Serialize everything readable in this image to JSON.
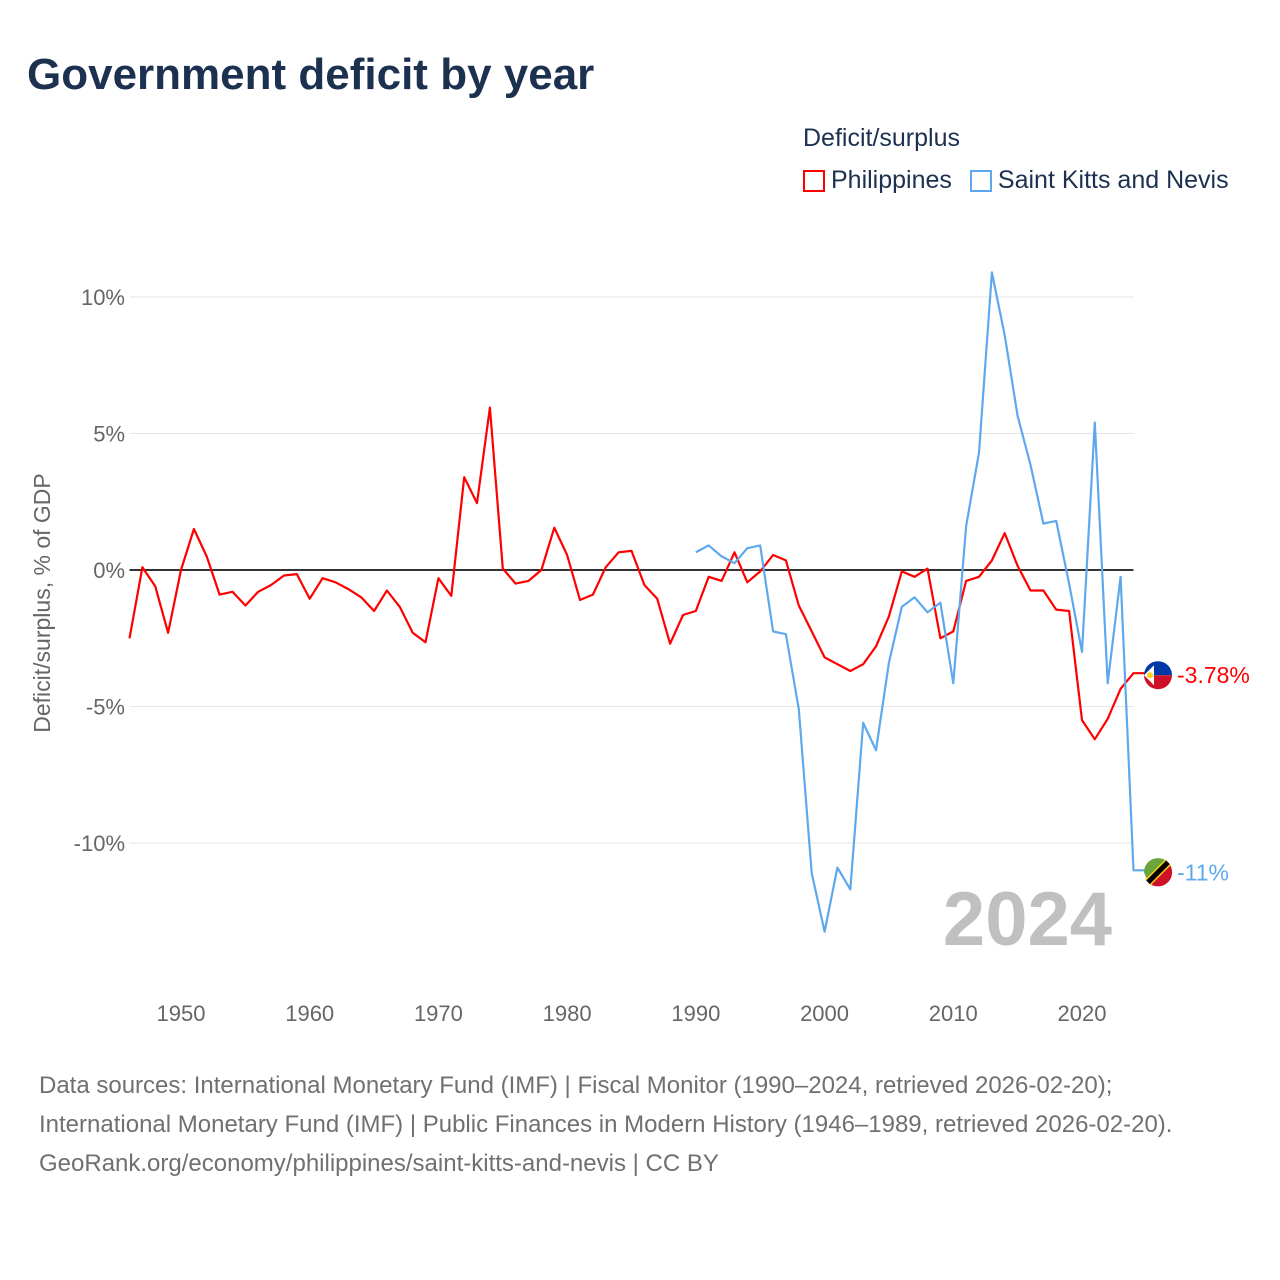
{
  "title": "Government deficit by year",
  "legend": {
    "title": "Deficit/surplus"
  },
  "chart_data": {
    "type": "line",
    "title": "Government deficit by year",
    "ylabel": "Deficit/surplus, % of GDP",
    "xlabel": "",
    "xlim": [
      1946,
      2024
    ],
    "ylim": [
      -15,
      11
    ],
    "x_ticks": [
      1950,
      1960,
      1970,
      1980,
      1990,
      2000,
      2010,
      2020
    ],
    "y_ticks": [
      {
        "v": 10,
        "label": "10%"
      },
      {
        "v": 5,
        "label": "5%"
      },
      {
        "v": 0,
        "label": "0%"
      },
      {
        "v": -5,
        "label": "-5%"
      },
      {
        "v": -10,
        "label": "-10%"
      }
    ],
    "current_year_label": "2024",
    "grid": true,
    "legend_placement": "top-right",
    "series": [
      {
        "name": "Philippines",
        "color": "#ff0000",
        "start": 1946,
        "end_label": "-3.78%",
        "flag": "philippines-flag-icon",
        "values": [
          -2.5,
          0.1,
          -0.6,
          -2.3,
          0,
          1.5,
          0.5,
          -0.9,
          -0.8,
          -1.3,
          -0.8,
          -0.55,
          -0.2,
          -0.15,
          -1.05,
          -0.3,
          -0.45,
          -0.7,
          -1.0,
          -1.5,
          -0.75,
          -1.35,
          -2.3,
          -2.65,
          -0.3,
          -0.95,
          3.4,
          2.45,
          5.95,
          0.05,
          -0.5,
          -0.4,
          0,
          1.55,
          0.55,
          -1.1,
          -0.9,
          0.1,
          0.65,
          0.7,
          -0.55,
          -1.05,
          -2.7,
          -1.65,
          -1.5,
          -0.25,
          -0.4,
          0.65,
          -0.45,
          -0.05,
          0.55,
          0.35,
          -1.3,
          -2.25,
          -3.2,
          -3.45,
          -3.7,
          -3.45,
          -2.8,
          -1.7,
          -0.05,
          -0.25,
          0.05,
          -2.5,
          -2.25,
          -0.4,
          -0.25,
          0.35,
          1.35,
          0.15,
          -0.75,
          -0.75,
          -1.45,
          -1.5,
          -5.5,
          -6.2,
          -5.45,
          -4.35,
          -3.78
        ]
      },
      {
        "name": "Saint Kitts and Nevis",
        "color": "#5ea8ee",
        "start": 1990,
        "end_label": "-11%",
        "flag": "saint-kitts-flag-icon",
        "values": [
          0.65,
          0.9,
          0.5,
          0.25,
          0.8,
          0.9,
          -2.25,
          -2.35,
          -5.1,
          -11.1,
          -13.25,
          -10.9,
          -11.7,
          -5.6,
          -6.6,
          -3.4,
          -1.35,
          -1.0,
          -1.55,
          -1.2,
          -4.15,
          1.6,
          4.3,
          10.9,
          8.6,
          5.65,
          3.85,
          1.7,
          1.8,
          -0.5,
          -3.0,
          5.4,
          -4.15,
          -0.25,
          -11.0
        ]
      }
    ]
  },
  "footer": {
    "sources": "Data sources: International Monetary Fund (IMF) | Fiscal Monitor (1990–2024, retrieved 2026-02-20); International Monetary Fund (IMF) | Public Finances in Modern History (1946–1989, retrieved 2026-02-20).",
    "link": "GeoRank.org/economy/philippines/saint-kitts-and-nevis",
    "license": " | CC BY"
  }
}
